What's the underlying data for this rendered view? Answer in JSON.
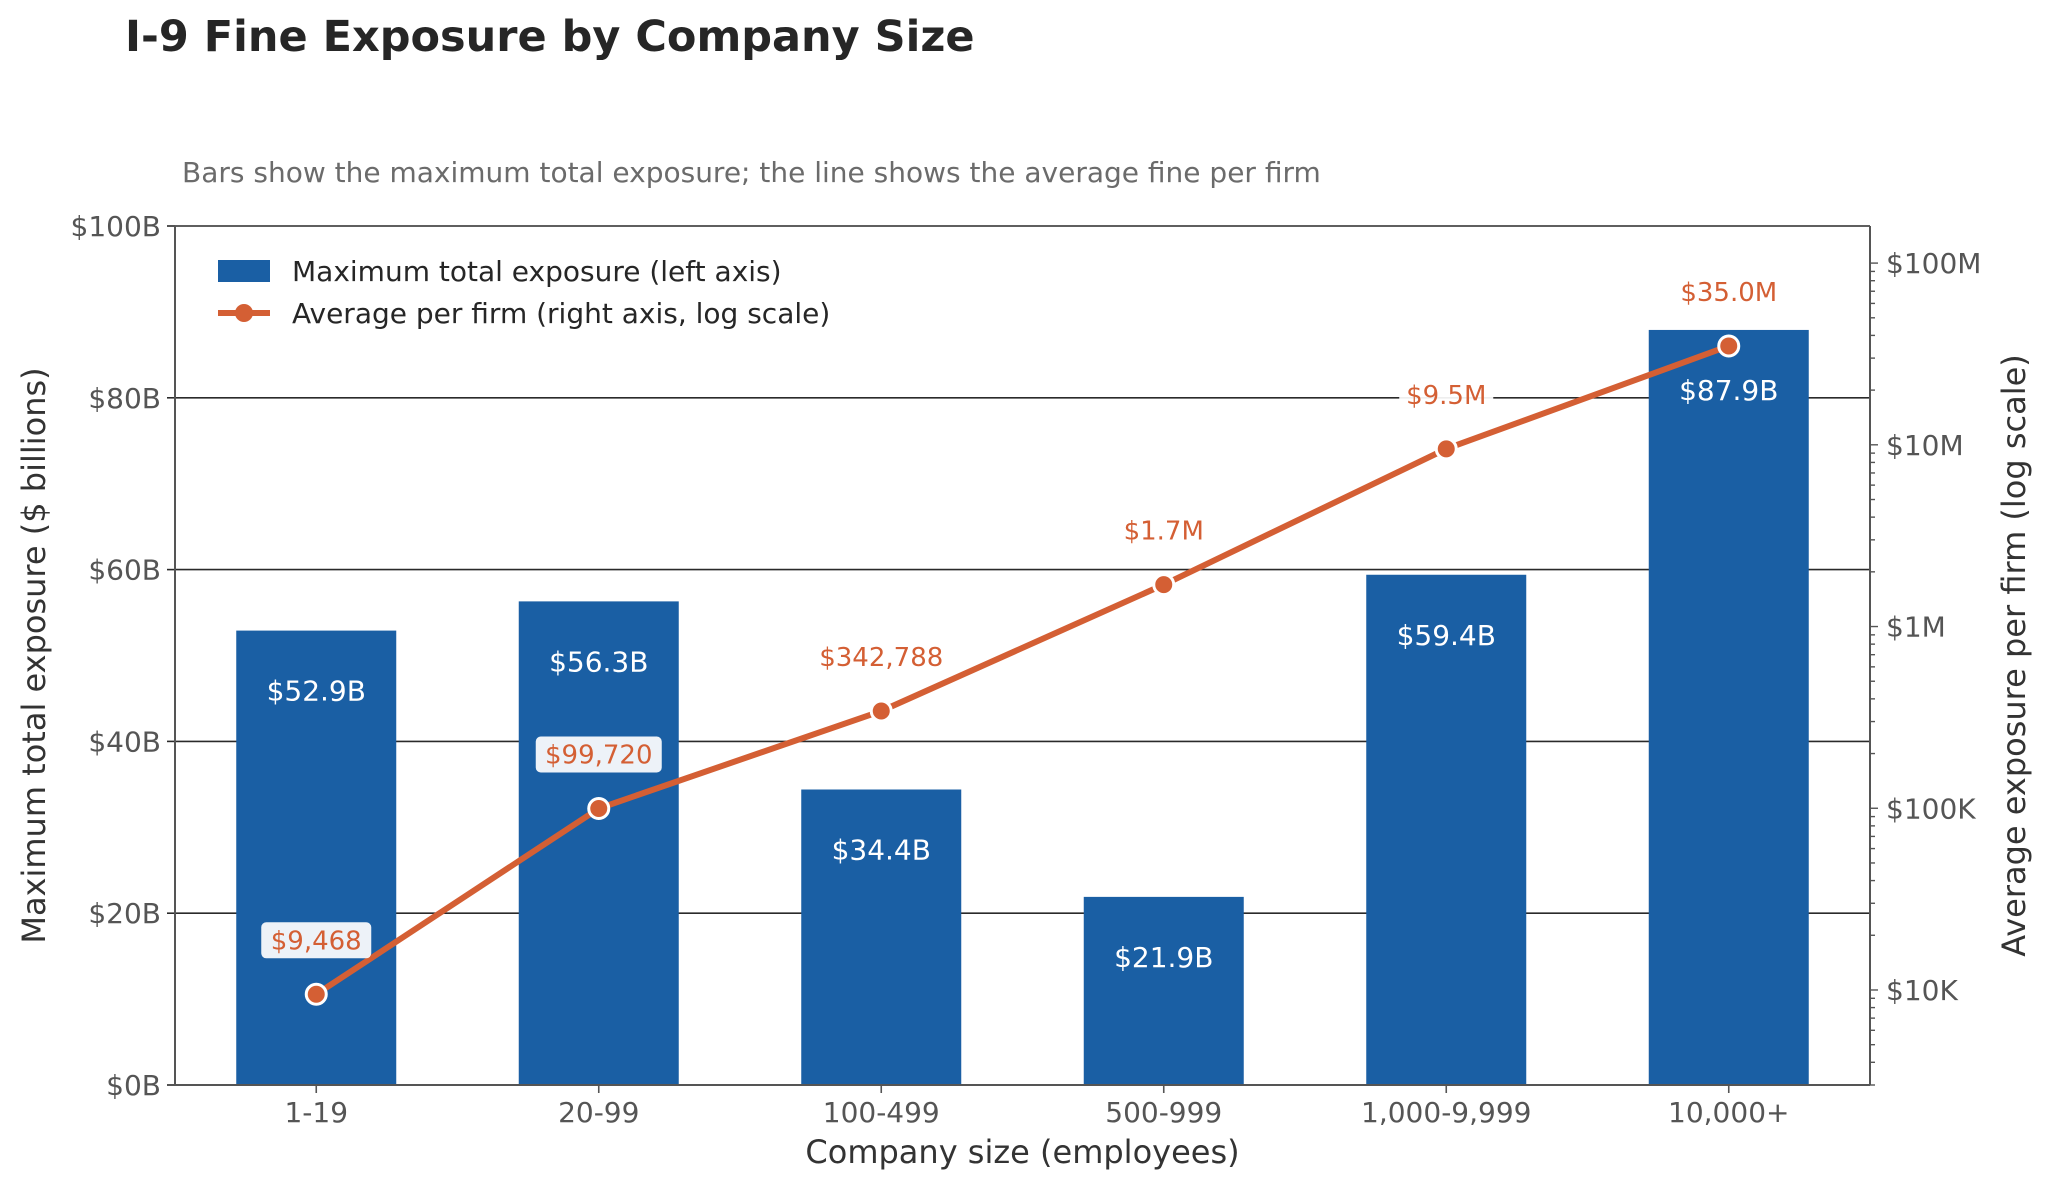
{
  "chart_data": {
    "type": "bar",
    "title": "I-9 Fine Exposure by Company Size",
    "subtitle": "Bars show the maximum total exposure; the line shows the average fine per firm",
    "xlabel": "Company size (employees)",
    "ylabel_left": "Maximum total exposure ($ billions)",
    "ylabel_right": "Average exposure per firm (log scale)",
    "categories": [
      "1-19",
      "20-99",
      "100-499",
      "500-999",
      "1,000-9,999",
      "10,000+"
    ],
    "ylim_left": [
      0,
      100
    ],
    "yticks_left": [
      {
        "value": 0,
        "label": "$0B"
      },
      {
        "value": 20,
        "label": "$20B"
      },
      {
        "value": 40,
        "label": "$40B"
      },
      {
        "value": 60,
        "label": "$60B"
      },
      {
        "value": 80,
        "label": "$80B"
      },
      {
        "value": 100,
        "label": "$100B"
      }
    ],
    "ylim_right": [
      3000,
      160000000
    ],
    "yscale_right": "log",
    "yticks_right": [
      {
        "value": 10000,
        "label": "$10K"
      },
      {
        "value": 100000,
        "label": "$100K"
      },
      {
        "value": 1000000,
        "label": "$1M"
      },
      {
        "value": 10000000,
        "label": "$10M"
      },
      {
        "value": 100000000,
        "label": "$100M"
      }
    ],
    "grid": "horizontal",
    "legend_position": "top-left",
    "series": [
      {
        "name": "Maximum total exposure (left axis)",
        "type": "bar",
        "axis": "left",
        "color": "#1a5fa4",
        "values": [
          52.9,
          56.3,
          34.4,
          21.9,
          59.4,
          87.9
        ],
        "labels": [
          "$52.9B",
          "$56.3B",
          "$34.4B",
          "$21.9B",
          "$59.4B",
          "$87.9B"
        ]
      },
      {
        "name": "Average per firm (right axis, log scale)",
        "type": "line",
        "axis": "right",
        "color": "#d45f34",
        "values": [
          9468,
          99720,
          342788,
          1700000,
          9500000,
          35000000
        ],
        "labels": [
          "$9,468",
          "$99,720",
          "$342,788",
          "$1.7M",
          "$9.5M",
          "$35.0M"
        ]
      }
    ]
  }
}
